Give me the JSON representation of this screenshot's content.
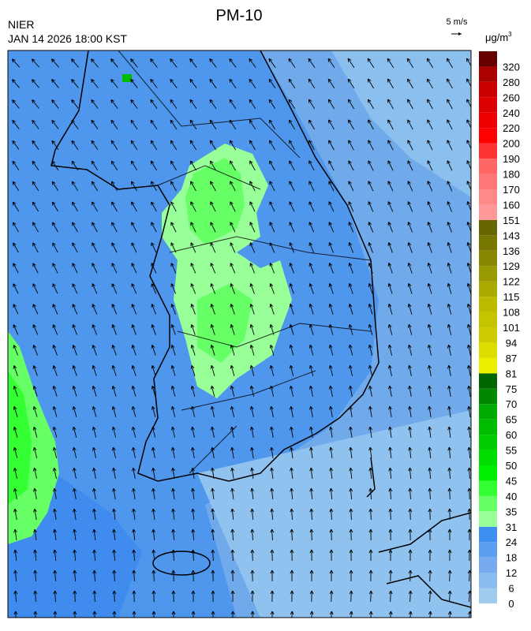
{
  "header": {
    "title": "PM-10",
    "agency": "NIER",
    "timestamp": "JAN 14 2026 18:00 KST",
    "wind_scale": "5 m/s",
    "unit": "μg/m",
    "unit_exponent": "3"
  },
  "colorbar": {
    "ticks": [
      0,
      6,
      12,
      18,
      24,
      31,
      35,
      40,
      45,
      50,
      55,
      60,
      65,
      70,
      75,
      81,
      87,
      94,
      101,
      108,
      115,
      122,
      129,
      136,
      143,
      151,
      160,
      170,
      180,
      190,
      200,
      220,
      240,
      260,
      280,
      320
    ],
    "colors": [
      "#9fcbee",
      "#88bbee",
      "#77aaee",
      "#5c9eee",
      "#3d8ff0",
      "#99ff99",
      "#66ff66",
      "#33ff33",
      "#00ee00",
      "#00dd00",
      "#00cc00",
      "#00bb00",
      "#00aa00",
      "#008800",
      "#006600",
      "#eeee00",
      "#dddd00",
      "#cccc00",
      "#c4c400",
      "#bbbb00",
      "#aaaa00",
      "#999900",
      "#888800",
      "#777700",
      "#666600",
      "#ff9999",
      "#ff8888",
      "#ff7777",
      "#ff6666",
      "#ff3333",
      "#ff0000",
      "#ee0000",
      "#dd0000",
      "#cc0000",
      "#aa0000",
      "#660000"
    ]
  }
}
